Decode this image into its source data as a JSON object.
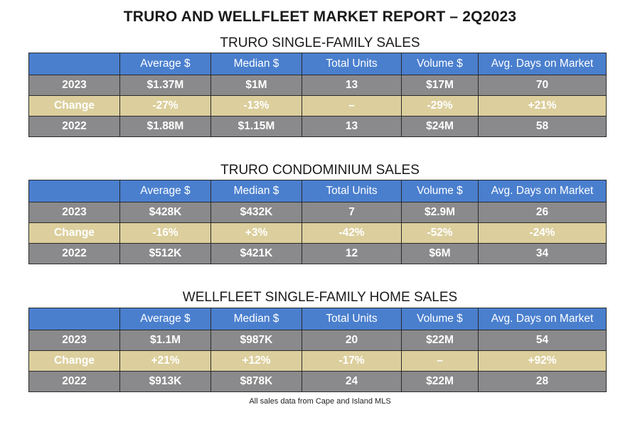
{
  "report_title": "TRURO AND WELLFLEET MARKET REPORT – 2Q2023",
  "footnote": "All sales data from Cape and Island MLS",
  "columns": [
    "",
    "Average $",
    "Median $",
    "Total Units",
    "Volume $",
    "Avg. Days on Market"
  ],
  "colors": {
    "header": "#4a7fce",
    "year_row": "#8a8a8c",
    "change_row": "#dccf9d"
  },
  "sections": [
    {
      "title": "TRURO SINGLE-FAMILY SALES",
      "rows": [
        [
          "2023",
          "$1.37M",
          "$1M",
          "13",
          "$17M",
          "70"
        ],
        [
          "Change",
          "-27%",
          "-13%",
          "–",
          "-29%",
          "+21%"
        ],
        [
          "2022",
          "$1.88M",
          "$1.15M",
          "13",
          "$24M",
          "58"
        ]
      ]
    },
    {
      "title": "TRURO CONDOMINIUM SALES",
      "rows": [
        [
          "2023",
          "$428K",
          "$432K",
          "7",
          "$2.9M",
          "26"
        ],
        [
          "Change",
          "-16%",
          "+3%",
          "-42%",
          "-52%",
          "-24%"
        ],
        [
          "2022",
          "$512K",
          "$421K",
          "12",
          "$6M",
          "34"
        ]
      ]
    },
    {
      "title": "WELLFLEET SINGLE-FAMILY HOME SALES",
      "rows": [
        [
          "2023",
          "$1.1M",
          "$987K",
          "20",
          "$22M",
          "54"
        ],
        [
          "Change",
          "+21%",
          "+12%",
          "-17%",
          "–",
          "+92%"
        ],
        [
          "2022",
          "$913K",
          "$878K",
          "24",
          "$22M",
          "28"
        ]
      ]
    }
  ]
}
